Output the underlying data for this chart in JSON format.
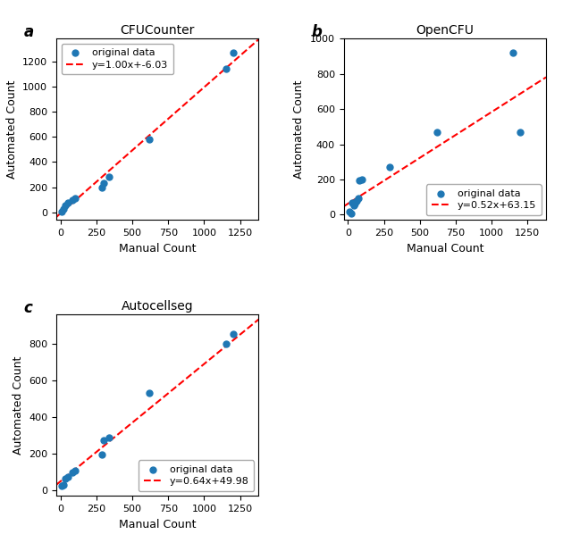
{
  "panels": [
    {
      "label": "a",
      "title": "CFUCounter",
      "scatter_x": [
        10,
        20,
        30,
        50,
        80,
        100,
        290,
        300,
        340,
        620,
        1150,
        1200
      ],
      "scatter_y": [
        5,
        30,
        55,
        80,
        100,
        110,
        195,
        230,
        280,
        580,
        1140,
        1270
      ],
      "slope": 1.0,
      "intercept": -6.03,
      "eq_label": "y=1.00x+-6.03",
      "x_lim": [
        -30,
        1380
      ],
      "y_lim": [
        -60,
        1380
      ],
      "legend_loc": "upper left",
      "line_style": "dashed"
    },
    {
      "label": "b",
      "title": "OpenCFU",
      "scatter_x": [
        10,
        20,
        30,
        40,
        50,
        60,
        70,
        80,
        100,
        290,
        620,
        1150,
        1200
      ],
      "scatter_y": [
        20,
        10,
        70,
        55,
        65,
        80,
        95,
        195,
        200,
        270,
        470,
        920,
        470
      ],
      "slope": 0.52,
      "intercept": 63.15,
      "eq_label": "y=0.52x+63.15",
      "x_lim": [
        -30,
        1380
      ],
      "y_lim": [
        -30,
        1000
      ],
      "legend_loc": "lower right",
      "line_style": "dashed"
    },
    {
      "label": "c",
      "title": "Autocellseg",
      "scatter_x": [
        10,
        20,
        30,
        50,
        80,
        100,
        290,
        300,
        340,
        620,
        1150,
        1200
      ],
      "scatter_y": [
        25,
        30,
        65,
        75,
        100,
        110,
        195,
        275,
        290,
        530,
        800,
        855
      ],
      "slope": 0.64,
      "intercept": 49.98,
      "eq_label": "y=0.64x+49.98",
      "x_lim": [
        -30,
        1380
      ],
      "y_lim": [
        -30,
        960
      ],
      "legend_loc": "lower right",
      "line_style": "dashed"
    }
  ],
  "dot_color": "#1f77b4",
  "line_color": "red",
  "xlabel": "Manual Count",
  "ylabel": "Automated Count",
  "label_fontsize": 9,
  "title_fontsize": 10,
  "tick_fontsize": 8,
  "legend_fontsize": 8,
  "dot_size": 25,
  "panel_label_fontsize": 12
}
